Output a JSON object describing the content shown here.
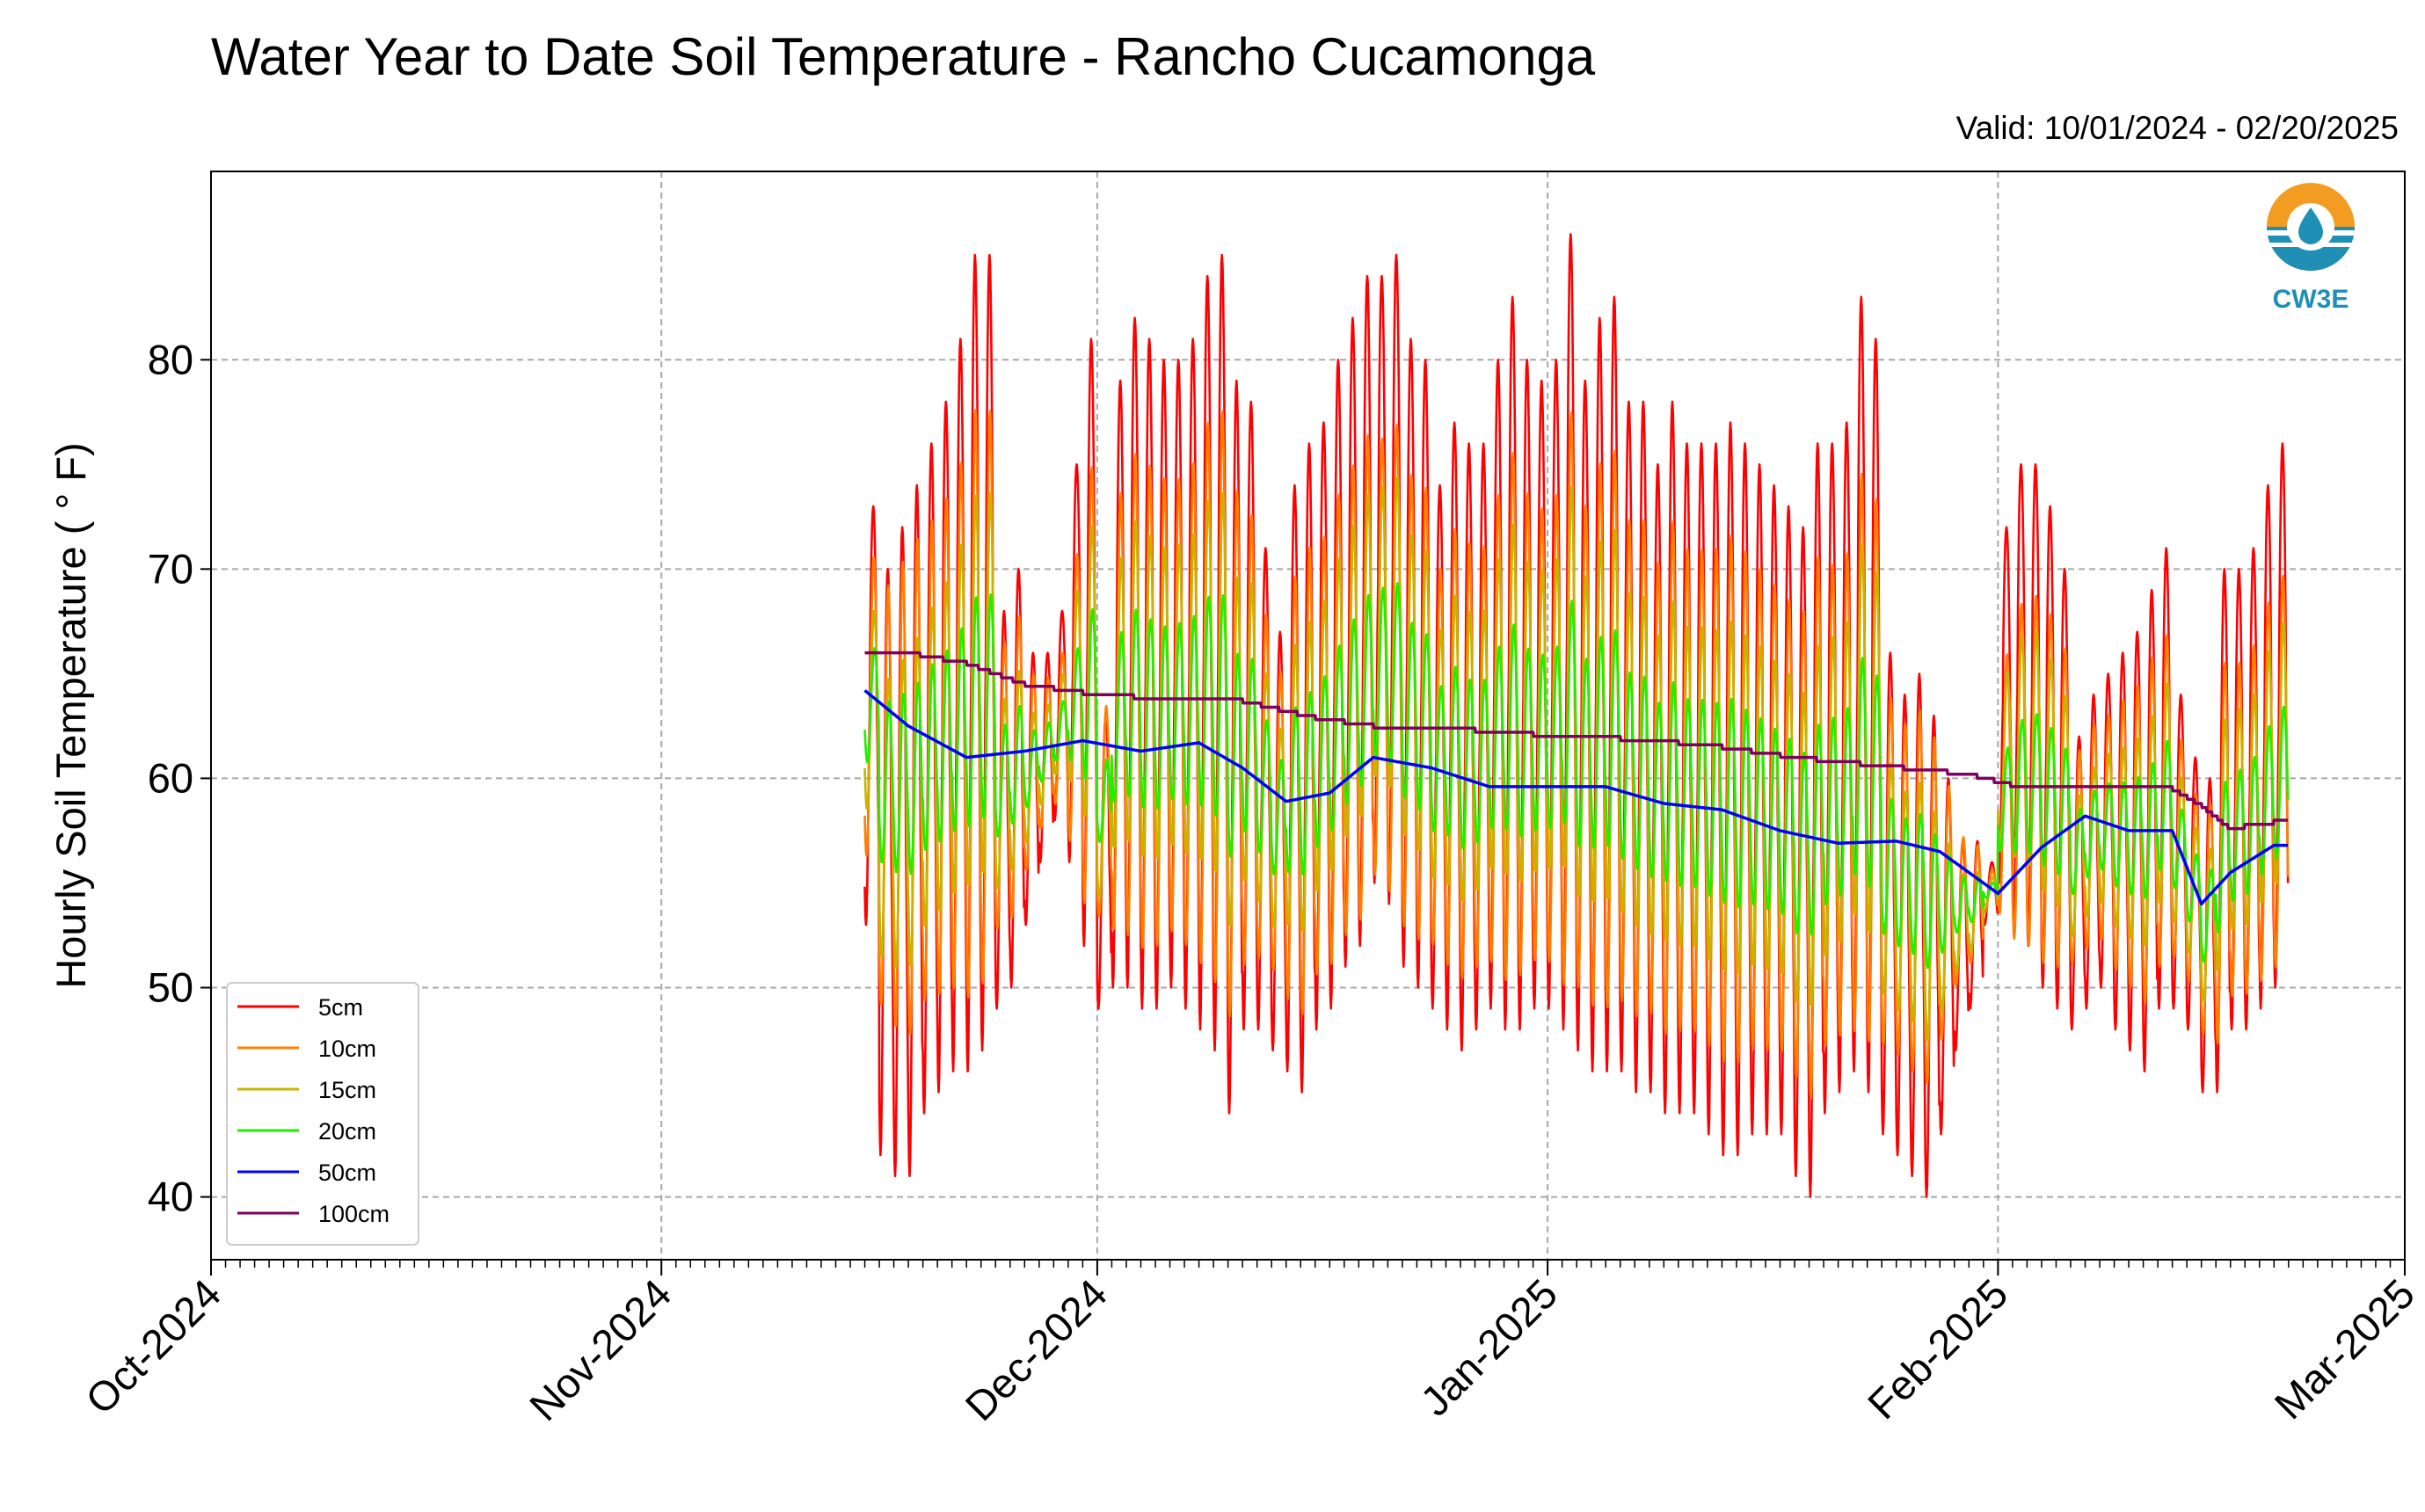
{
  "chart_data": {
    "type": "line",
    "title": "Water Year to Date Soil Temperature - Rancho Cucamonga",
    "subtitle": "Valid: 10/01/2024 - 02/20/2025",
    "xlabel": "",
    "ylabel": "Hourly Soil Temperature ( $^\\circ$F)",
    "ylabel_display": "Hourly Soil Temperature ( ° F)",
    "xlim": [
      "2024-10-01",
      "2025-03-01"
    ],
    "ylim": [
      37,
      89
    ],
    "x_ticks": [
      "Oct-2024",
      "Nov-2024",
      "Dec-2024",
      "Jan-2025",
      "Feb-2025",
      "Mar-2025"
    ],
    "y_ticks": [
      40,
      50,
      60,
      70,
      80
    ],
    "grid": true,
    "legend_position": "lower-left",
    "logo_text": "CW3E",
    "series": [
      {
        "name": "5cm",
        "color": "#ff0000",
        "daily_max": {
          "dates": [
            "2024-11-15",
            "2024-11-16",
            "2024-11-17",
            "2024-11-18",
            "2024-11-19",
            "2024-11-20",
            "2024-11-21",
            "2024-11-22",
            "2024-11-23",
            "2024-11-24",
            "2024-11-25",
            "2024-11-26",
            "2024-11-27",
            "2024-11-28",
            "2024-11-29",
            "2024-11-30",
            "2024-12-01",
            "2024-12-02",
            "2024-12-03",
            "2024-12-04",
            "2024-12-05",
            "2024-12-06",
            "2024-12-07",
            "2024-12-08",
            "2024-12-09",
            "2024-12-10",
            "2024-12-11",
            "2024-12-12",
            "2024-12-13",
            "2024-12-14",
            "2024-12-15",
            "2024-12-16",
            "2024-12-17",
            "2024-12-18",
            "2024-12-19",
            "2024-12-20",
            "2024-12-21",
            "2024-12-22",
            "2024-12-23",
            "2024-12-24",
            "2024-12-25",
            "2024-12-26",
            "2024-12-27",
            "2024-12-28",
            "2024-12-29",
            "2024-12-30",
            "2024-12-31",
            "2025-01-01",
            "2025-01-02",
            "2025-01-03",
            "2025-01-04",
            "2025-01-05",
            "2025-01-06",
            "2025-01-07",
            "2025-01-08",
            "2025-01-09",
            "2025-01-10",
            "2025-01-11",
            "2025-01-12",
            "2025-01-13",
            "2025-01-14",
            "2025-01-15",
            "2025-01-16",
            "2025-01-17",
            "2025-01-18",
            "2025-01-19",
            "2025-01-20",
            "2025-01-21",
            "2025-01-22",
            "2025-01-23",
            "2025-01-24",
            "2025-01-25",
            "2025-01-26",
            "2025-01-27",
            "2025-01-28",
            "2025-01-29",
            "2025-01-30",
            "2025-01-31",
            "2025-02-01",
            "2025-02-02",
            "2025-02-03",
            "2025-02-04",
            "2025-02-05",
            "2025-02-06",
            "2025-02-07",
            "2025-02-08",
            "2025-02-09",
            "2025-02-10",
            "2025-02-11",
            "2025-02-12",
            "2025-02-13",
            "2025-02-14",
            "2025-02-15",
            "2025-02-16",
            "2025-02-17",
            "2025-02-18",
            "2025-02-19",
            "2025-02-20"
          ],
          "values": [
            73,
            70,
            72,
            74,
            76,
            78,
            81,
            85,
            85,
            68,
            70,
            66,
            66,
            68,
            75,
            81,
            63,
            79,
            82,
            81,
            80,
            80,
            81,
            84,
            85,
            79,
            78,
            71,
            67,
            74,
            76,
            77,
            80,
            82,
            84,
            84,
            85,
            81,
            80,
            74,
            77,
            76,
            76,
            80,
            83,
            80,
            79,
            80,
            86,
            79,
            82,
            83,
            78,
            78,
            75,
            78,
            76,
            76,
            76,
            77,
            76,
            75,
            74,
            73,
            72,
            76,
            76,
            77,
            83,
            81,
            66,
            64,
            65,
            63,
            60,
            57,
            57,
            56,
            72,
            75,
            75,
            73,
            70,
            62,
            64,
            65,
            66,
            67,
            69,
            71,
            64,
            61,
            60,
            70,
            70,
            71,
            74,
            76
          ]
        },
        "daily_min": {
          "values": [
            53,
            42,
            41,
            41,
            44,
            45,
            46,
            46,
            47,
            49,
            50,
            53,
            56,
            58,
            56,
            52,
            49,
            50,
            50,
            49,
            49,
            50,
            49,
            48,
            47,
            44,
            48,
            48,
            47,
            46,
            45,
            48,
            49,
            51,
            52,
            55,
            54,
            51,
            50,
            49,
            48,
            47,
            48,
            49,
            48,
            48,
            49,
            49,
            48,
            47,
            46,
            46,
            46,
            45,
            45,
            44,
            44,
            44,
            43,
            42,
            42,
            43,
            43,
            43,
            41,
            40,
            44,
            45,
            46,
            45,
            43,
            42,
            41,
            40,
            43,
            47,
            49,
            53,
            55,
            53,
            52,
            50,
            49,
            48,
            49,
            50,
            48,
            47,
            46,
            49,
            49,
            48,
            45,
            45,
            48,
            48,
            49,
            50
          ]
        }
      },
      {
        "name": "10cm",
        "color": "#ff8000",
        "note": "diurnal, ~70% amplitude of 5cm"
      },
      {
        "name": "15cm",
        "color": "#c8b400",
        "note": "diurnal, ~45% amplitude of 5cm"
      },
      {
        "name": "20cm",
        "color": "#22ee00",
        "note": "diurnal, ~25% amplitude of 5cm"
      },
      {
        "name": "50cm",
        "color": "#0000ff",
        "x": [
          "2024-11-15",
          "2024-11-18",
          "2024-11-22",
          "2024-11-26",
          "2024-11-30",
          "2024-12-04",
          "2024-12-08",
          "2024-12-11",
          "2024-12-14",
          "2024-12-17",
          "2024-12-20",
          "2024-12-24",
          "2024-12-28",
          "2025-01-01",
          "2025-01-05",
          "2025-01-09",
          "2025-01-13",
          "2025-01-17",
          "2025-01-21",
          "2025-01-25",
          "2025-01-28",
          "2025-02-01",
          "2025-02-04",
          "2025-02-07",
          "2025-02-10",
          "2025-02-13",
          "2025-02-15",
          "2025-02-17",
          "2025-02-20"
        ],
        "values": [
          64.2,
          62.5,
          61.0,
          61.3,
          61.8,
          61.3,
          61.7,
          60.5,
          58.9,
          59.3,
          61.0,
          60.5,
          59.6,
          59.6,
          59.6,
          58.8,
          58.5,
          57.5,
          56.9,
          57.0,
          56.5,
          54.5,
          56.7,
          58.2,
          57.5,
          57.5,
          54.0,
          55.5,
          56.8
        ]
      },
      {
        "name": "100cm",
        "color": "#800060",
        "x": [
          "2024-11-15",
          "2024-11-18",
          "2024-11-22",
          "2024-11-26",
          "2024-12-01",
          "2024-12-06",
          "2024-12-11",
          "2024-12-16",
          "2024-12-20",
          "2024-12-25",
          "2024-12-31",
          "2025-01-06",
          "2025-01-12",
          "2025-01-18",
          "2025-01-24",
          "2025-01-30",
          "2025-02-03",
          "2025-02-07",
          "2025-02-13",
          "2025-02-15",
          "2025-02-17",
          "2025-02-20"
        ],
        "values": [
          66.0,
          66.0,
          65.5,
          64.5,
          64.0,
          63.8,
          63.7,
          62.9,
          62.5,
          62.4,
          62.1,
          61.9,
          61.6,
          61.0,
          60.6,
          60.2,
          59.5,
          59.5,
          59.5,
          58.7,
          57.6,
          57.9
        ]
      }
    ]
  }
}
